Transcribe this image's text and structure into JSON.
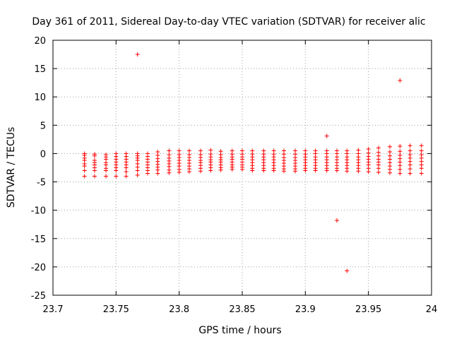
{
  "chart_data": {
    "type": "scatter",
    "title": "Day 361 of 2011, Sidereal Day-to-day VTEC variation (SDTVAR) for receiver alic",
    "xlabel": "GPS time / hours",
    "ylabel": "SDTVAR / TECUs",
    "xlim": [
      23.7,
      24.0
    ],
    "ylim": [
      -25,
      20
    ],
    "xticks": [
      "23.7",
      "23.75",
      "23.8",
      "23.85",
      "23.9",
      "23.95",
      "24"
    ],
    "yticks": [
      "-25",
      "-20",
      "-15",
      "-10",
      "-5",
      "0",
      "5",
      "10",
      "15",
      "20"
    ],
    "grid": true,
    "marker": "+",
    "color": "#ff0000",
    "series": [
      {
        "name": "SDTVAR",
        "x": [
          23.725,
          23.725,
          23.725,
          23.725,
          23.725,
          23.725,
          23.725,
          23.725,
          23.733,
          23.733,
          23.733,
          23.733,
          23.733,
          23.733,
          23.733,
          23.733,
          23.742,
          23.742,
          23.742,
          23.742,
          23.742,
          23.742,
          23.742,
          23.742,
          23.75,
          23.75,
          23.75,
          23.75,
          23.75,
          23.75,
          23.75,
          23.75,
          23.758,
          23.758,
          23.758,
          23.758,
          23.758,
          23.758,
          23.758,
          23.758,
          23.767,
          23.767,
          23.767,
          23.767,
          23.767,
          23.767,
          23.767,
          23.767,
          23.767,
          23.775,
          23.775,
          23.775,
          23.775,
          23.775,
          23.775,
          23.775,
          23.775,
          23.783,
          23.783,
          23.783,
          23.783,
          23.783,
          23.783,
          23.783,
          23.783,
          23.792,
          23.792,
          23.792,
          23.792,
          23.792,
          23.792,
          23.792,
          23.792,
          23.8,
          23.8,
          23.8,
          23.8,
          23.8,
          23.8,
          23.8,
          23.8,
          23.808,
          23.808,
          23.808,
          23.808,
          23.808,
          23.808,
          23.808,
          23.808,
          23.817,
          23.817,
          23.817,
          23.817,
          23.817,
          23.817,
          23.817,
          23.817,
          23.825,
          23.825,
          23.825,
          23.825,
          23.825,
          23.825,
          23.825,
          23.825,
          23.833,
          23.833,
          23.833,
          23.833,
          23.833,
          23.833,
          23.833,
          23.833,
          23.842,
          23.842,
          23.842,
          23.842,
          23.842,
          23.842,
          23.842,
          23.842,
          23.85,
          23.85,
          23.85,
          23.85,
          23.85,
          23.85,
          23.85,
          23.85,
          23.858,
          23.858,
          23.858,
          23.858,
          23.858,
          23.858,
          23.858,
          23.858,
          23.867,
          23.867,
          23.867,
          23.867,
          23.867,
          23.867,
          23.867,
          23.867,
          23.875,
          23.875,
          23.875,
          23.875,
          23.875,
          23.875,
          23.875,
          23.875,
          23.883,
          23.883,
          23.883,
          23.883,
          23.883,
          23.883,
          23.883,
          23.883,
          23.892,
          23.892,
          23.892,
          23.892,
          23.892,
          23.892,
          23.892,
          23.892,
          23.9,
          23.9,
          23.9,
          23.9,
          23.9,
          23.9,
          23.9,
          23.9,
          23.908,
          23.908,
          23.908,
          23.908,
          23.908,
          23.908,
          23.908,
          23.908,
          23.917,
          23.917,
          23.917,
          23.917,
          23.917,
          23.917,
          23.917,
          23.917,
          23.917,
          23.925,
          23.925,
          23.925,
          23.925,
          23.925,
          23.925,
          23.925,
          23.925,
          23.925,
          23.933,
          23.933,
          23.933,
          23.933,
          23.933,
          23.933,
          23.933,
          23.933,
          23.933,
          23.942,
          23.942,
          23.942,
          23.942,
          23.942,
          23.942,
          23.942,
          23.942,
          23.95,
          23.95,
          23.95,
          23.95,
          23.95,
          23.95,
          23.95,
          23.95,
          23.958,
          23.958,
          23.958,
          23.958,
          23.958,
          23.958,
          23.958,
          23.958,
          23.967,
          23.967,
          23.967,
          23.967,
          23.967,
          23.967,
          23.967,
          23.967,
          23.975,
          23.975,
          23.975,
          23.975,
          23.975,
          23.975,
          23.975,
          23.975,
          23.975,
          23.983,
          23.983,
          23.983,
          23.983,
          23.983,
          23.983,
          23.983,
          23.983,
          23.992,
          23.992,
          23.992,
          23.992,
          23.992,
          23.992,
          23.992,
          23.992
        ],
        "y": [
          0,
          -0.3,
          -0.8,
          -1.2,
          -1.8,
          -2.2,
          -3.0,
          -4.0,
          -0.1,
          -0.4,
          -1.2,
          -1.6,
          -2.0,
          -2.5,
          -3.0,
          -4.0,
          -0.2,
          -0.6,
          -1.0,
          -1.6,
          -2.0,
          -2.6,
          -3.0,
          -4.0,
          0,
          -0.5,
          -1.0,
          -1.5,
          -2.0,
          -2.5,
          -3.0,
          -4.0,
          0,
          -0.5,
          -1.0,
          -1.5,
          -2.0,
          -2.5,
          -3.2,
          -4.0,
          0,
          -0.4,
          -0.8,
          -1.2,
          -1.8,
          -2.4,
          -3.0,
          -3.8,
          17.5,
          0,
          -0.5,
          -1.0,
          -1.5,
          -2.0,
          -2.5,
          -3.0,
          -3.5,
          0.3,
          -0.3,
          -0.9,
          -1.4,
          -1.9,
          -2.4,
          -2.9,
          -3.5,
          0.5,
          -0.2,
          -0.8,
          -1.3,
          -1.8,
          -2.3,
          -2.9,
          -3.4,
          0.5,
          -0.2,
          -0.7,
          -1.2,
          -1.7,
          -2.2,
          -2.8,
          -3.3,
          0.5,
          -0.2,
          -0.7,
          -1.2,
          -1.7,
          -2.2,
          -2.7,
          -3.2,
          0.5,
          -0.2,
          -0.7,
          -1.2,
          -1.6,
          -2.1,
          -2.6,
          -3.1,
          0.6,
          -0.1,
          -0.6,
          -1.1,
          -1.5,
          -2.0,
          -2.5,
          -3.0,
          0.4,
          -0.2,
          -0.7,
          -1.1,
          -1.5,
          -2.0,
          -2.5,
          -2.9,
          0.5,
          -0.1,
          -0.6,
          -1.0,
          -1.5,
          -2.0,
          -2.4,
          -2.8,
          0.5,
          -0.1,
          -0.6,
          -1.0,
          -1.5,
          -2.0,
          -2.4,
          -2.8,
          0.5,
          -0.1,
          -0.6,
          -1.1,
          -1.6,
          -2.1,
          -2.6,
          -3.0,
          0.5,
          -0.1,
          -0.6,
          -1.1,
          -1.6,
          -2.1,
          -2.6,
          -3.0,
          0.5,
          -0.1,
          -0.6,
          -1.1,
          -1.6,
          -2.1,
          -2.6,
          -3.0,
          0.5,
          -0.1,
          -0.7,
          -1.2,
          -1.7,
          -2.2,
          -2.7,
          -3.1,
          0.5,
          -0.1,
          -0.7,
          -1.2,
          -1.7,
          -2.2,
          -2.7,
          -3.1,
          0.5,
          -0.1,
          -0.6,
          -1.1,
          -1.6,
          -2.1,
          -2.6,
          -3.0,
          0.5,
          0,
          -0.6,
          -1.1,
          -1.6,
          -2.1,
          -2.6,
          -3.0,
          0.5,
          0,
          -0.6,
          -1.1,
          -1.6,
          -2.1,
          -2.6,
          -3.0,
          3.1,
          0.5,
          0,
          -0.6,
          -1.1,
          -1.6,
          -2.1,
          -2.6,
          -3.0,
          -11.8,
          0.5,
          0,
          -0.6,
          -1.1,
          -1.6,
          -2.1,
          -2.6,
          -3.1,
          -20.7,
          0.6,
          0,
          -0.6,
          -1.1,
          -1.6,
          -2.1,
          -2.6,
          -3.1,
          0.8,
          0.1,
          -0.5,
          -1.0,
          -1.5,
          -2.0,
          -2.6,
          -3.2,
          1.0,
          0.2,
          -0.4,
          -1.0,
          -1.5,
          -2.0,
          -2.6,
          -3.3,
          1.2,
          0.3,
          -0.4,
          -1.0,
          -1.6,
          -2.2,
          -2.8,
          -3.4,
          1.3,
          0.4,
          -0.3,
          -0.9,
          -1.5,
          -2.1,
          -2.8,
          -3.5,
          12.9,
          1.4,
          0.5,
          -0.2,
          -0.8,
          -1.4,
          -2.0,
          -2.7,
          -3.5,
          1.4,
          0.5,
          -0.2,
          -0.8,
          -1.4,
          -2.0,
          -2.6,
          -3.5
        ]
      }
    ]
  }
}
